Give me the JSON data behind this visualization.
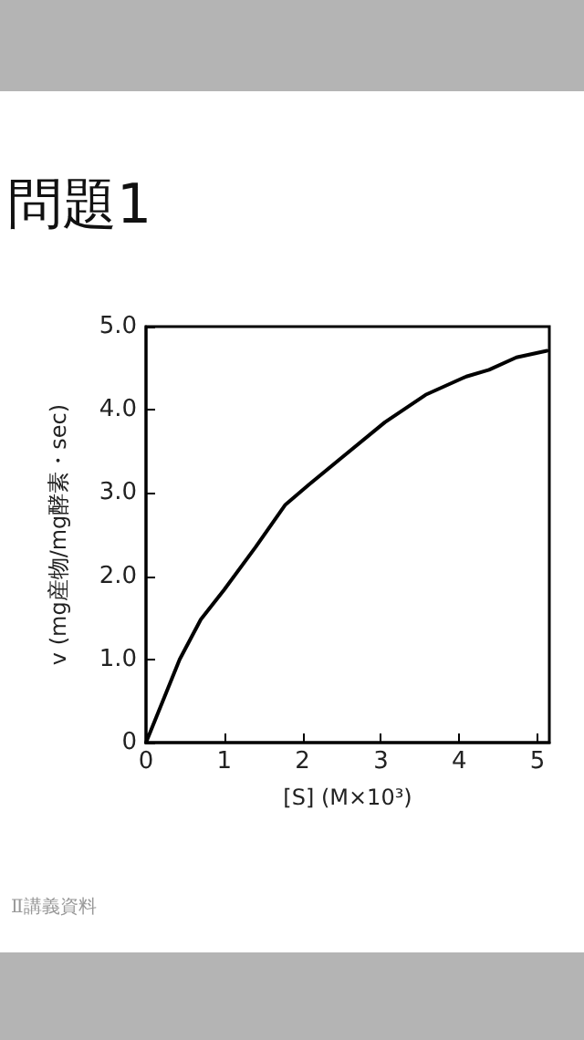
{
  "chart_data": {
    "type": "line",
    "title": "問題1",
    "xlabel": "[S] (M×10³)",
    "ylabel": "v (mg産物/mg酵素・sec)",
    "annotations": [
      "Ⅱ講義資料"
    ],
    "x": [
      0,
      0.43,
      0.7,
      1.0,
      1.4,
      1.78,
      2.08,
      2.48,
      3.05,
      3.57,
      4.09,
      4.38,
      4.73,
      5.12
    ],
    "series": [
      {
        "color": "#000000",
        "values": [
          0,
          1.0,
          1.48,
          1.84,
          2.35,
          2.86,
          3.1,
          3.41,
          3.85,
          4.18,
          4.4,
          4.48,
          4.63,
          4.71
        ]
      }
    ],
    "xlim": [
      0,
      5.15
    ],
    "xticks": [
      0,
      1,
      2,
      3,
      4,
      5
    ],
    "ylim": [
      0,
      5
    ],
    "yticks": [
      0,
      {
        "value": 1,
        "label": "1.0"
      },
      {
        "value": 2,
        "label": "2.0"
      },
      {
        "value": 3,
        "label": "3.0"
      },
      {
        "value": 4,
        "label": "4.0"
      },
      {
        "value": 5,
        "label": "5.0"
      }
    ],
    "marker": "none",
    "line_style": "solid"
  }
}
